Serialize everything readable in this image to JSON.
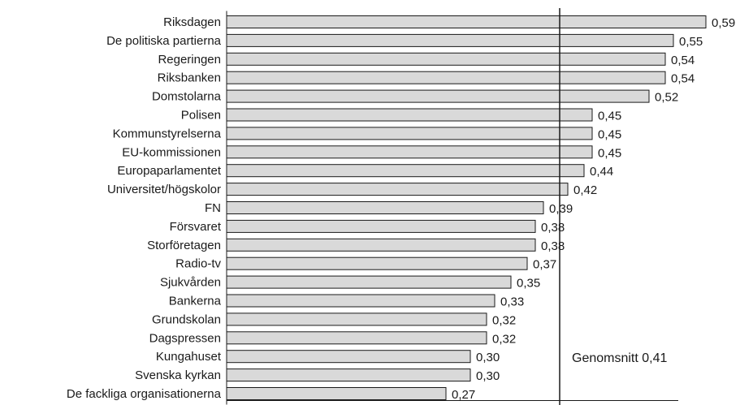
{
  "chart_data": {
    "type": "bar",
    "orientation": "horizontal",
    "categories": [
      "Riksdagen",
      "De politiska partierna",
      "Regeringen",
      "Riksbanken",
      "Domstolarna",
      "Polisen",
      "Kommunstyrelserna",
      "EU-kommissionen",
      "Europaparlamentet",
      "Universitet/högskolor",
      "FN",
      "Försvaret",
      "Storföretagen",
      "Radio-tv",
      "Sjukvården",
      "Bankerna",
      "Grundskolan",
      "Dagspressen",
      "Kungahuset",
      "Svenska kyrkan",
      "De fackliga organisationerna"
    ],
    "values": [
      0.59,
      0.55,
      0.54,
      0.54,
      0.52,
      0.45,
      0.45,
      0.45,
      0.44,
      0.42,
      0.39,
      0.38,
      0.38,
      0.37,
      0.35,
      0.33,
      0.32,
      0.32,
      0.3,
      0.3,
      0.27
    ],
    "value_labels": [
      "0,59",
      "0,55",
      "0,54",
      "0,54",
      "0,52",
      "0,45",
      "0,45",
      "0,45",
      "0,44",
      "0,42",
      "0,39",
      "0,38",
      "0,38",
      "0,37",
      "0,35",
      "0,33",
      "0,32",
      "0,32",
      "0,30",
      "0,30",
      "0,27"
    ],
    "xlim": [
      0,
      0.6
    ],
    "reference_line": {
      "value": 0.41,
      "label": "Genomsnitt 0,41"
    },
    "bar_color": "#d9d9d9",
    "bar_edge_color": "#1a1a1a",
    "title": "",
    "xlabel": "",
    "ylabel": "",
    "grid": false,
    "legend": "none"
  }
}
